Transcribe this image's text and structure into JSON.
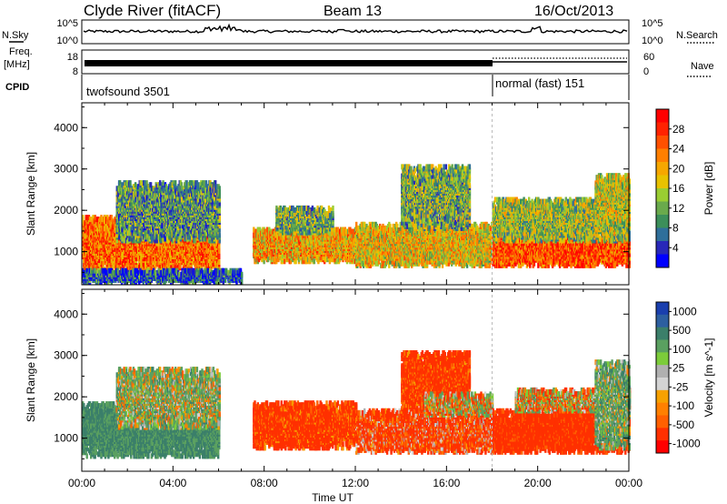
{
  "header": {
    "station": "Clyde River (fitACF)",
    "beam": "Beam 13",
    "date": "16/Oct/2013"
  },
  "strips": {
    "nsky": {
      "label": "N.Sky",
      "tick_top": "10^5",
      "tick_bottom": "10^0"
    },
    "nsearch": {
      "label": "N.Search",
      "tick_top": "10^5",
      "tick_bottom": "10^0"
    },
    "freq": {
      "label_line1": "Freq.",
      "label_line2": "[MHz]",
      "tick_top": "18",
      "tick_bottom": "8"
    },
    "nave": {
      "label": "Nave",
      "tick_top": "60",
      "tick_bottom": "0"
    },
    "cpid": {
      "label": "CPID",
      "segments": [
        {
          "name": "twofsound 3501",
          "start_ut": 0,
          "end_ut": 18
        },
        {
          "name": "normal (fast) 151",
          "start_ut": 18,
          "end_ut": 24
        }
      ]
    }
  },
  "chart_data": [
    {
      "type": "heatmap",
      "panel": "power",
      "ylabel": "Slant Range [km]",
      "xlabel": "",
      "xlim": [
        0,
        24
      ],
      "ylim": [
        200,
        4600
      ],
      "yticks": [
        1000,
        2000,
        3000,
        4000
      ],
      "colorbar": {
        "label": "Power [dB]",
        "ticks": [
          4,
          8,
          12,
          16,
          20,
          24,
          28
        ],
        "colors": [
          "#0000ff",
          "#2828b8",
          "#2f6f9a",
          "#3c8f5a",
          "#6aaa4c",
          "#9acd32",
          "#e8c200",
          "#f6a700",
          "#ff7f00",
          "#ff5000",
          "#ff2200",
          "#ff0000"
        ]
      },
      "regions": [
        {
          "x0": 0.0,
          "x1": 6.0,
          "y0": 500,
          "y1": 1800,
          "v": 24
        },
        {
          "x0": 1.5,
          "x1": 6.0,
          "y0": 1200,
          "y1": 2600,
          "v": 10
        },
        {
          "x0": 7.5,
          "x1": 12.0,
          "y0": 700,
          "y1": 1500,
          "v": 20
        },
        {
          "x0": 8.5,
          "x1": 11.0,
          "y0": 1400,
          "y1": 2000,
          "v": 12
        },
        {
          "x0": 12.0,
          "x1": 18.0,
          "y0": 600,
          "y1": 1600,
          "v": 18
        },
        {
          "x0": 14.0,
          "x1": 17.0,
          "y0": 1500,
          "y1": 3000,
          "v": 12
        },
        {
          "x0": 18.0,
          "x1": 24.0,
          "y0": 600,
          "y1": 1300,
          "v": 26
        },
        {
          "x0": 18.0,
          "x1": 24.0,
          "y0": 1200,
          "y1": 2200,
          "v": 14
        },
        {
          "x0": 22.5,
          "x1": 24.0,
          "y0": 1600,
          "y1": 2800,
          "v": 16
        },
        {
          "x0": 0.0,
          "x1": 7.0,
          "y0": 200,
          "y1": 500,
          "v": 6
        }
      ]
    },
    {
      "type": "heatmap",
      "panel": "velocity",
      "ylabel": "Slant Range [km]",
      "xlabel": "Time UT",
      "xlim": [
        0,
        24
      ],
      "ylim": [
        200,
        4600
      ],
      "yticks": [
        1000,
        2000,
        3000,
        4000
      ],
      "xticks": [
        "00:00",
        "04:00",
        "08:00",
        "12:00",
        "16:00",
        "20:00",
        "00:00"
      ],
      "colorbar": {
        "label": "Velocity [m s^-1]",
        "ticks": [
          1000,
          500,
          100,
          25,
          -25,
          -100,
          -500,
          -1000
        ],
        "colors": [
          "#1a3fae",
          "#2d5fa0",
          "#3b7f6a",
          "#5aa060",
          "#7ccc3a",
          "#b0b0b0",
          "#d4d4d4",
          "#f6a100",
          "#ff8000",
          "#ff6000",
          "#ff3000",
          "#ff0000"
        ]
      },
      "regions": [
        {
          "x0": 0.0,
          "x1": 6.0,
          "y0": 500,
          "y1": 1800,
          "v": 300
        },
        {
          "x0": 1.5,
          "x1": 6.0,
          "y0": 1200,
          "y1": 2600,
          "v": 100
        },
        {
          "x0": 7.5,
          "x1": 12.0,
          "y0": 700,
          "y1": 1800,
          "v": -200
        },
        {
          "x0": 12.0,
          "x1": 18.0,
          "y0": 600,
          "y1": 1600,
          "v": -150
        },
        {
          "x0": 14.0,
          "x1": 17.0,
          "y0": 1600,
          "y1": 3000,
          "v": -200
        },
        {
          "x0": 15.0,
          "x1": 18.0,
          "y0": 1500,
          "y1": 2000,
          "v": 0
        },
        {
          "x0": 18.0,
          "x1": 24.0,
          "y0": 600,
          "y1": 1600,
          "v": -250
        },
        {
          "x0": 19.0,
          "x1": 24.0,
          "y0": 1600,
          "y1": 2100,
          "v": 0
        },
        {
          "x0": 22.5,
          "x1": 24.0,
          "y0": 700,
          "y1": 2800,
          "v": 150
        }
      ]
    }
  ]
}
